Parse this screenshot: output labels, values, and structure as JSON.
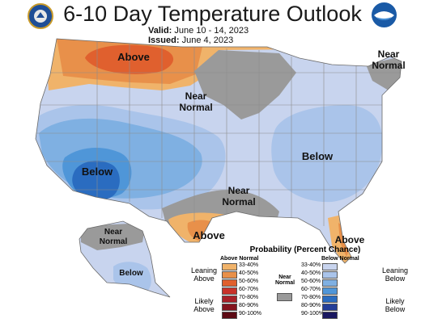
{
  "title": "6-10 Day Temperature Outlook",
  "valid_label": "Valid:",
  "valid_value": "June 10 - 14, 2023",
  "issued_label": "Issued:",
  "issued_value": "June 4, 2023",
  "map_labels": {
    "above_north": "Above",
    "near_normal_northeast": "Near\nNormal",
    "near_normal_central": "Near\nNormal",
    "below_east": "Below",
    "below_southwest": "Below",
    "near_normal_south": "Near\nNormal",
    "above_texas": "Above",
    "above_florida": "Above",
    "near_normal_alaska": "Near\nNormal",
    "below_alaska": "Below"
  },
  "legend": {
    "title": "Probability (Percent Chance)",
    "above_header": "Above Normal",
    "below_header": "Below Normal",
    "near_header": "Near\nNormal",
    "leaning_above": "Leaning\nAbove",
    "likely_above": "Likely\nAbove",
    "leaning_below": "Leaning\nBelow",
    "likely_below": "Likely\nBelow",
    "ranges": [
      "33-40%",
      "40-50%",
      "50-60%",
      "60-70%",
      "70-80%",
      "80-90%",
      "90-100%"
    ],
    "above_colors": [
      "#f0b36a",
      "#e8904a",
      "#e0602e",
      "#c8322a",
      "#a82028",
      "#84141e",
      "#5c0a14"
    ],
    "below_colors": [
      "#c8d4ee",
      "#aac4ea",
      "#7fb0e2",
      "#4f96d8",
      "#2a6cc0",
      "#233e98",
      "#1a1860"
    ],
    "near_color": "#9a9a9a"
  },
  "colors": {
    "above_33_40": "#f0b36a",
    "above_40_50": "#e8904a",
    "above_50_60": "#e0602e",
    "near_normal": "#9a9a9a",
    "below_33_40": "#c8d4ee",
    "below_40_50": "#aac4ea",
    "below_50_60": "#7fb0e2",
    "below_60_70": "#4f96d8",
    "below_70_80": "#2a6cc0"
  },
  "icons": [
    "noaa-logo-icon",
    "commerce-seal-icon"
  ]
}
